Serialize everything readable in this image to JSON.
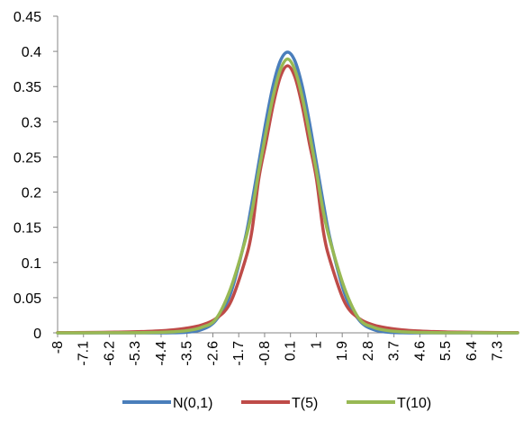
{
  "chart_data": {
    "type": "line",
    "title": "",
    "xlabel": "",
    "ylabel": "",
    "xlim": [
      -8,
      8
    ],
    "ylim": [
      0,
      0.45
    ],
    "grid": false,
    "legend_position": "bottom",
    "x_tick_labels": [
      "-8",
      "-7.1",
      "-6.2",
      "-5.3",
      "-4.4",
      "-3.5",
      "-2.6",
      "-1.7",
      "-0.8",
      "0.1",
      "1",
      "1.9",
      "2.8",
      "3.7",
      "4.6",
      "5.5",
      "6.4",
      "7.3"
    ],
    "y_tick_labels": [
      "0",
      "0.05",
      "0.1",
      "0.15",
      "0.2",
      "0.25",
      "0.3",
      "0.35",
      "0.4",
      "0.45"
    ],
    "x": [
      -8,
      -7.5,
      -7,
      -6.5,
      -6,
      -5.5,
      -5,
      -4.5,
      -4,
      -3.5,
      -3,
      -2.5,
      -2,
      -1.5,
      -1.25,
      -1,
      -0.75,
      -0.5,
      -0.25,
      0,
      0.25,
      0.5,
      0.75,
      1,
      1.25,
      1.5,
      2,
      2.5,
      3,
      3.5,
      4,
      4.5,
      5,
      5.5,
      6,
      6.5,
      7,
      7.5,
      8
    ],
    "series": [
      {
        "name": "N(0,1)",
        "color": "#4a7ebb",
        "values": [
          0,
          0,
          0,
          0,
          0,
          0,
          0,
          0,
          0.0001,
          0.0009,
          0.0044,
          0.0175,
          0.054,
          0.1295,
          0.1826,
          0.242,
          0.3011,
          0.3521,
          0.3867,
          0.3989,
          0.3867,
          0.3521,
          0.3011,
          0.242,
          0.1826,
          0.1295,
          0.054,
          0.0175,
          0.0044,
          0.0009,
          0.0001,
          0,
          0,
          0,
          0,
          0,
          0,
          0,
          0
        ]
      },
      {
        "name": "T(5)",
        "color": "#be4b48",
        "values": [
          0.0003,
          0.0004,
          0.0005,
          0.0007,
          0.0009,
          0.0012,
          0.0018,
          0.0027,
          0.0042,
          0.0067,
          0.0109,
          0.0201,
          0.0422,
          0.0998,
          0.1427,
          0.2197,
          0.2713,
          0.3244,
          0.3642,
          0.3796,
          0.3642,
          0.3244,
          0.2713,
          0.2197,
          0.1427,
          0.0998,
          0.0422,
          0.0201,
          0.0109,
          0.0067,
          0.0042,
          0.0027,
          0.0018,
          0.0012,
          0.0009,
          0.0007,
          0.0005,
          0.0004,
          0.0003
        ]
      },
      {
        "name": "T(10)",
        "color": "#98b954",
        "values": [
          0,
          0,
          0,
          0.0001,
          0.0001,
          0.0002,
          0.0004,
          0.0007,
          0.0014,
          0.0031,
          0.0077,
          0.0194,
          0.0611,
          0.1274,
          0.1705,
          0.2304,
          0.2855,
          0.3366,
          0.3741,
          0.3891,
          0.3741,
          0.3366,
          0.2855,
          0.2304,
          0.1705,
          0.1274,
          0.0611,
          0.0194,
          0.0077,
          0.0031,
          0.0014,
          0.0007,
          0.0004,
          0.0002,
          0.0001,
          0.0001,
          0,
          0,
          0
        ]
      }
    ]
  }
}
